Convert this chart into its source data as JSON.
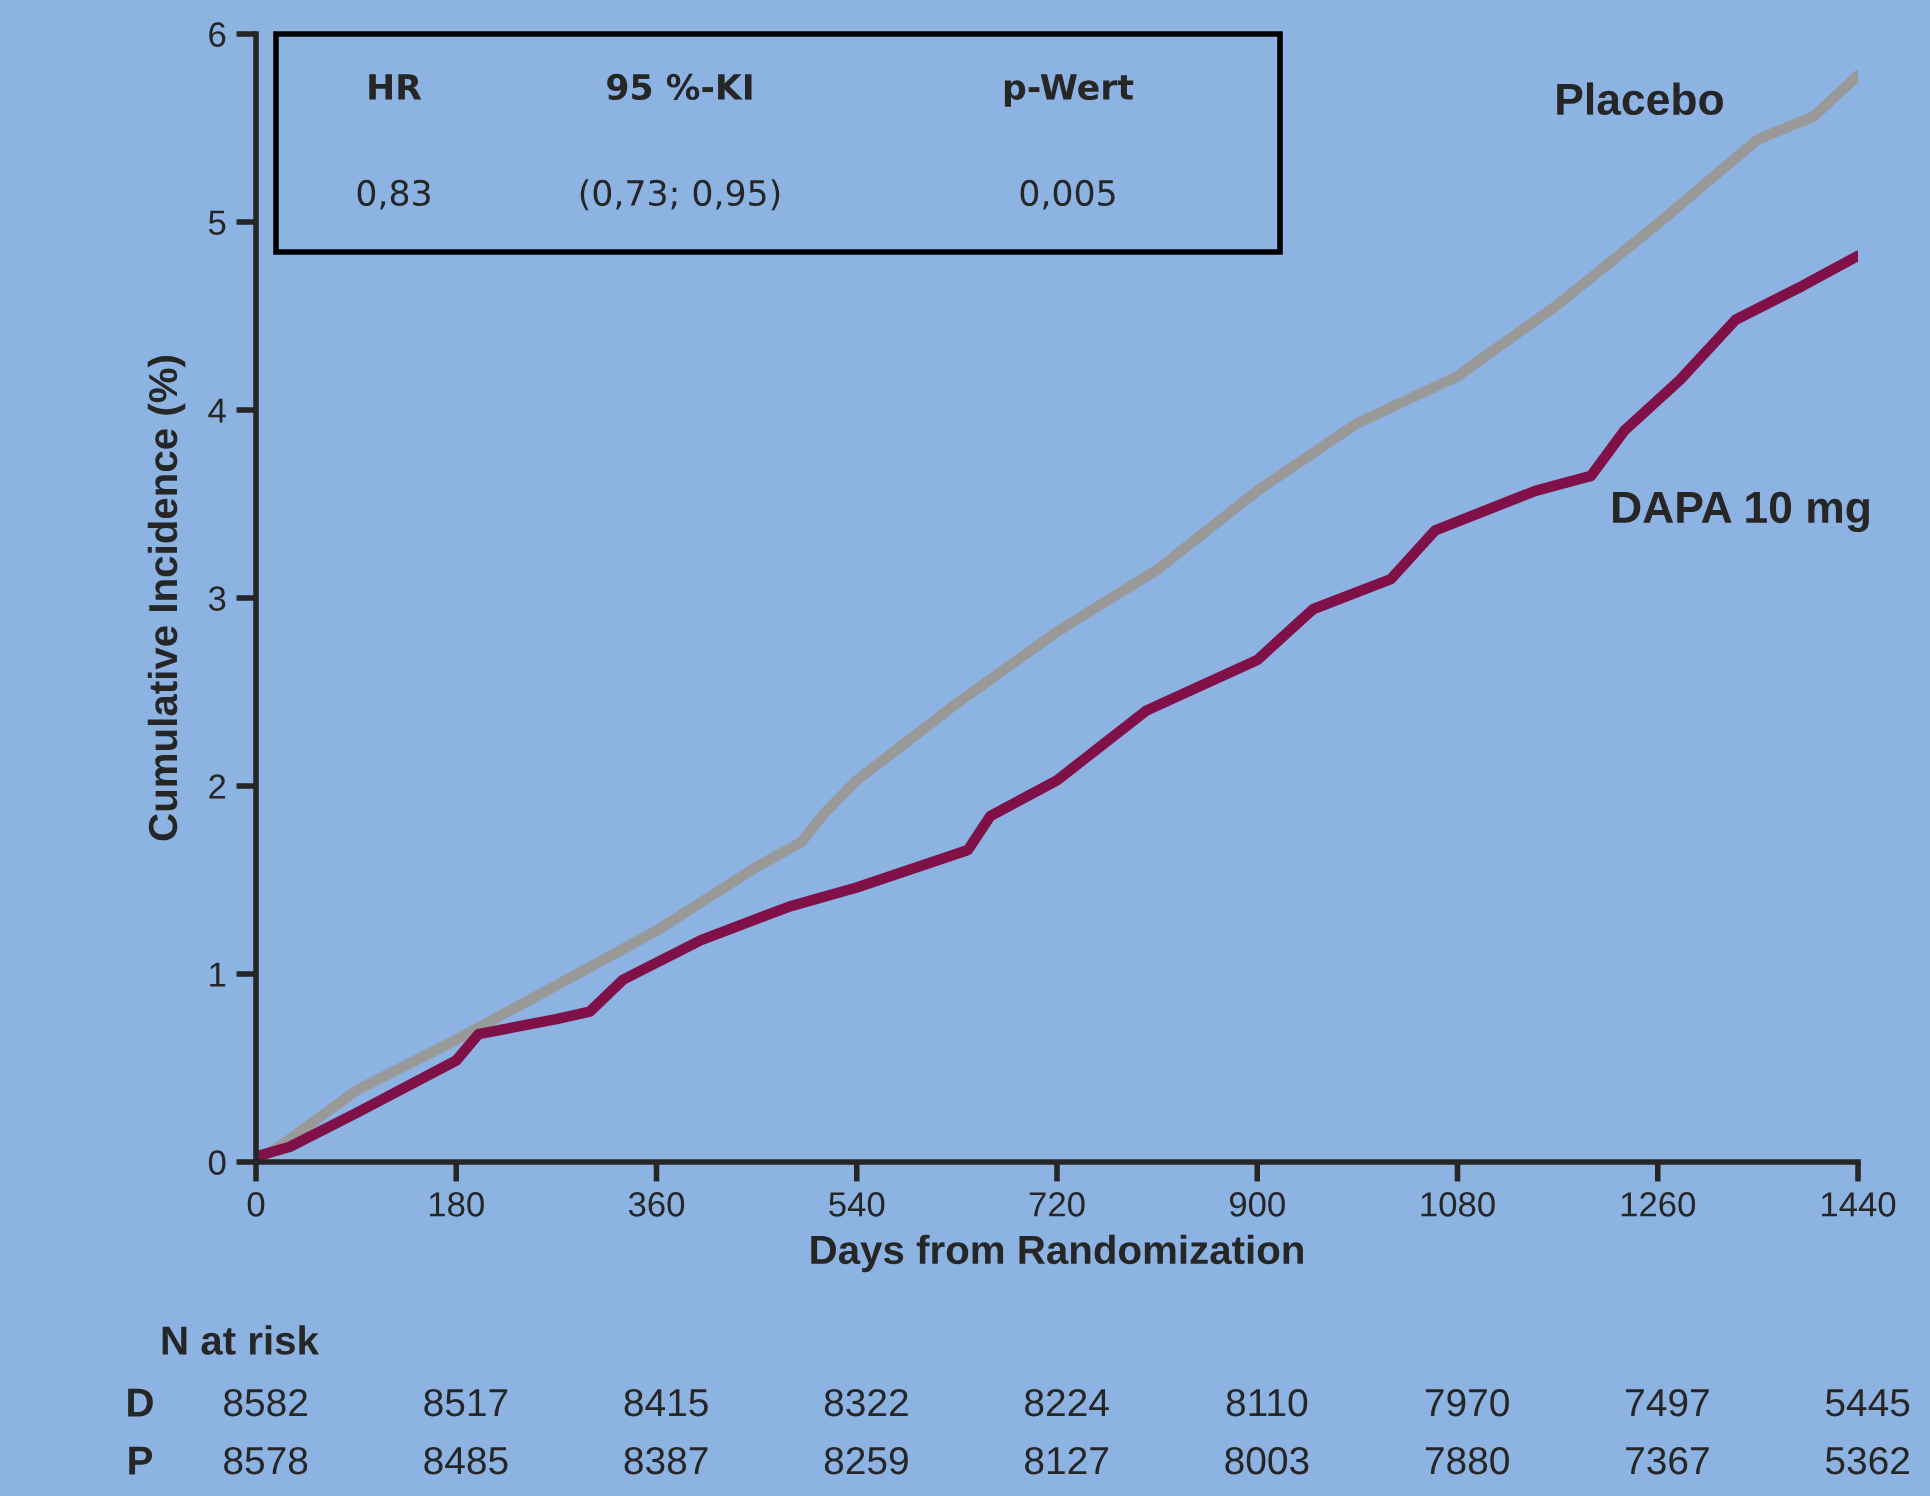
{
  "chart_data": {
    "type": "line",
    "xlabel": "Days from Randomization",
    "ylabel": "Cumulative Incidence (%)",
    "xlim": [
      0,
      1440
    ],
    "xticks": [
      0,
      180,
      360,
      540,
      720,
      900,
      1080,
      1260,
      1440
    ],
    "ylim": [
      0,
      6
    ],
    "yticks": [
      0,
      1,
      2,
      3,
      4,
      5,
      6
    ],
    "grid": false,
    "legend": false,
    "series": [
      {
        "name": "Placebo",
        "color": "#999999",
        "x": [
          0,
          30,
          90,
          180,
          270,
          360,
          450,
          490,
          510,
          540,
          630,
          720,
          810,
          900,
          990,
          1080,
          1170,
          1260,
          1350,
          1400,
          1440
        ],
        "values": [
          0,
          0.12,
          0.38,
          0.65,
          0.94,
          1.23,
          1.57,
          1.7,
          1.85,
          2.03,
          2.44,
          2.82,
          3.15,
          3.57,
          3.93,
          4.18,
          4.56,
          4.99,
          5.44,
          5.56,
          5.78
        ]
      },
      {
        "name": "DAPA 10 mg",
        "color": "#7f1048",
        "x": [
          0,
          30,
          90,
          180,
          200,
          270,
          300,
          330,
          400,
          480,
          540,
          640,
          660,
          720,
          800,
          900,
          950,
          1020,
          1060,
          1150,
          1200,
          1230,
          1280,
          1330,
          1390,
          1440
        ],
        "values": [
          0.03,
          0.08,
          0.26,
          0.54,
          0.68,
          0.76,
          0.8,
          0.97,
          1.18,
          1.36,
          1.46,
          1.66,
          1.84,
          2.03,
          2.4,
          2.67,
          2.94,
          3.1,
          3.36,
          3.57,
          3.65,
          3.89,
          4.16,
          4.48,
          4.66,
          4.82
        ]
      }
    ],
    "annotations": [
      "HR",
      "95 %-KI",
      "p-Wert",
      "0,83",
      "(0,73; 0,95)",
      "0,005",
      "N at risk",
      "D",
      "8582",
      "8517",
      "8415",
      "8322",
      "8224",
      "8110",
      "7970",
      "7497",
      "5445",
      "P",
      "8578",
      "8485",
      "8387",
      "8259",
      "8127",
      "8003",
      "7880",
      "7367",
      "5362"
    ]
  }
}
